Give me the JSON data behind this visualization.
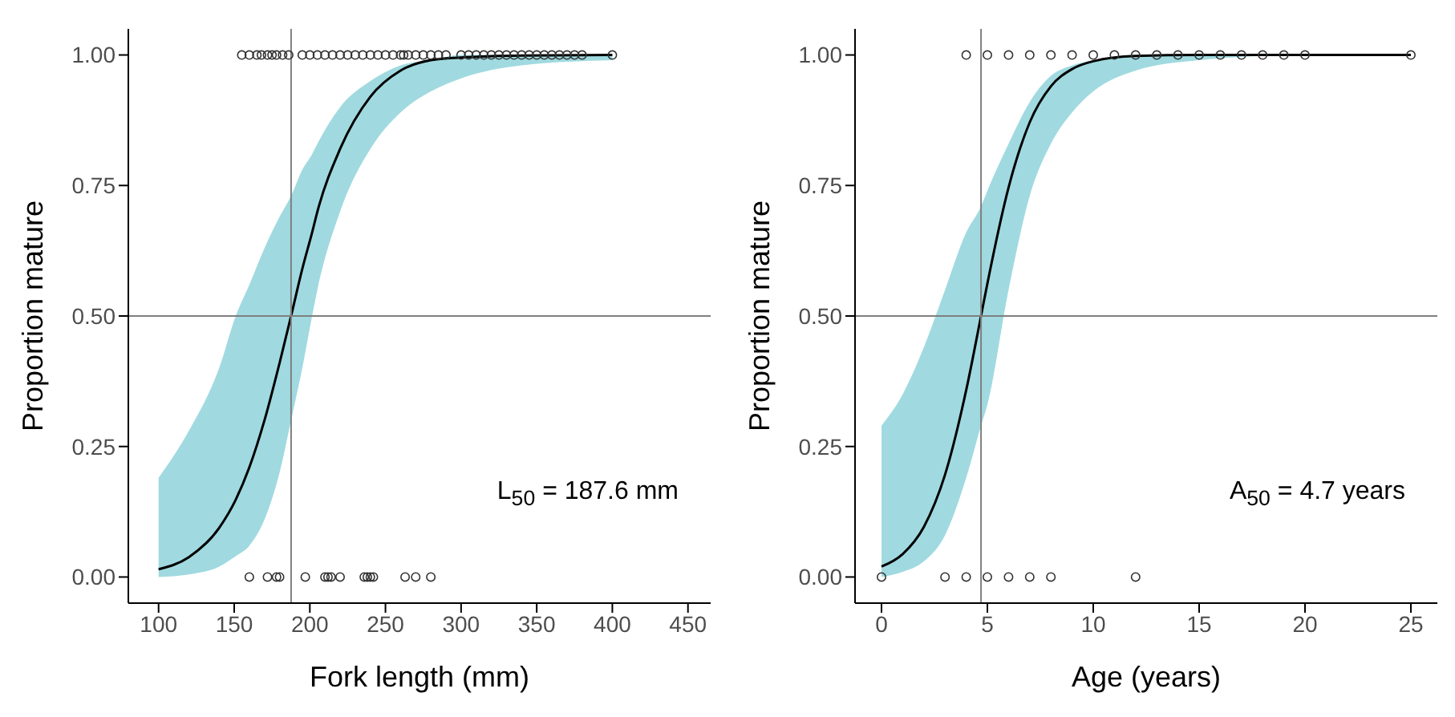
{
  "chart_data": [
    {
      "type": "line",
      "xlabel": "Fork length (mm)",
      "ylabel": "Proportion mature",
      "xlim": [
        80,
        465
      ],
      "xticks": [
        100,
        150,
        200,
        250,
        300,
        350,
        400,
        450
      ],
      "ylim": [
        -0.05,
        1.05
      ],
      "yticks": [
        {
          "value": 0,
          "label": "0.00"
        },
        {
          "value": 0.25,
          "label": "0.25"
        },
        {
          "value": 0.5,
          "label": "0.50"
        },
        {
          "value": 0.75,
          "label": "0.75"
        },
        {
          "value": 1,
          "label": "1.00"
        }
      ],
      "grid": false,
      "legend": false,
      "ref_lines": [
        {
          "axis": "x",
          "value": 187.6,
          "color": "#7f7f7f"
        },
        {
          "axis": "y",
          "value": 0.5,
          "color": "#7f7f7f"
        }
      ],
      "annotations": [
        "L$_{50}$ = 187.6 mm"
      ],
      "series": [
        {
          "color": "#000000",
          "x": [
            100,
            120,
            140,
            151,
            160,
            170,
            180,
            187.6,
            195,
            201.5,
            205,
            220,
            240,
            260,
            280,
            300,
            340,
            400
          ],
          "values": [
            0.015,
            0.038,
            0.094,
            0.148,
            0.21,
            0.3,
            0.41,
            0.5,
            0.59,
            0.66,
            0.7,
            0.82,
            0.92,
            0.97,
            0.99,
            0.995,
            0.999,
            1.0
          ],
          "lower": [
            0.0,
            0.005,
            0.02,
            0.04,
            0.06,
            0.11,
            0.2,
            0.3,
            0.4,
            0.5,
            0.55,
            0.7,
            0.82,
            0.89,
            0.93,
            0.955,
            0.98,
            0.99
          ],
          "upper": [
            0.19,
            0.28,
            0.4,
            0.5,
            0.56,
            0.63,
            0.69,
            0.73,
            0.78,
            0.81,
            0.83,
            0.9,
            0.95,
            0.98,
            0.99,
            1.0,
            1.0,
            1.0
          ]
        },
        {
          "type": "scatter",
          "color": "#333333",
          "marker": "circle",
          "x": [
            160,
            172,
            178,
            180,
            197,
            210,
            212,
            214,
            220,
            236,
            238,
            240,
            242,
            263,
            270,
            280,
            155,
            160,
            165,
            168,
            172,
            175,
            178,
            182,
            186,
            195,
            200,
            205,
            210,
            215,
            220,
            225,
            230,
            235,
            240,
            245,
            250,
            255,
            260,
            262,
            265,
            270,
            275,
            280,
            285,
            290,
            300,
            305,
            310,
            315,
            320,
            325,
            330,
            335,
            340,
            345,
            350,
            355,
            360,
            365,
            370,
            375,
            380,
            400
          ],
          "values": [
            0,
            0,
            0,
            0,
            0,
            0,
            0,
            0,
            0,
            0,
            0,
            0,
            0,
            0,
            0,
            0,
            1,
            1,
            1,
            1,
            1,
            1,
            1,
            1,
            1,
            1,
            1,
            1,
            1,
            1,
            1,
            1,
            1,
            1,
            1,
            1,
            1,
            1,
            1,
            1,
            1,
            1,
            1,
            1,
            1,
            1,
            1,
            1,
            1,
            1,
            1,
            1,
            1,
            1,
            1,
            1,
            1,
            1,
            1,
            1,
            1,
            1,
            1,
            1
          ]
        }
      ]
    },
    {
      "type": "line",
      "xlabel": "Age (years)",
      "ylabel": "Proportion mature",
      "xlim": [
        -1.25,
        26.25
      ],
      "xticks": [
        0,
        5,
        10,
        15,
        20,
        25
      ],
      "ylim": [
        -0.05,
        1.05
      ],
      "yticks": [
        {
          "value": 0,
          "label": "0.00"
        },
        {
          "value": 0.25,
          "label": "0.25"
        },
        {
          "value": 0.5,
          "label": "0.50"
        },
        {
          "value": 0.75,
          "label": "0.75"
        },
        {
          "value": 1,
          "label": "1.00"
        }
      ],
      "grid": false,
      "legend": false,
      "ref_lines": [
        {
          "axis": "x",
          "value": 4.7,
          "color": "#7f7f7f"
        },
        {
          "axis": "y",
          "value": 0.5,
          "color": "#7f7f7f"
        }
      ],
      "annotations": [
        "A$_{50}$ = 4.7 years"
      ],
      "series": [
        {
          "color": "#000000",
          "x": [
            0,
            1,
            2,
            3,
            4,
            4.7,
            5,
            6,
            7,
            8,
            9,
            10,
            12,
            15,
            20,
            25
          ],
          "values": [
            0.02,
            0.044,
            0.096,
            0.196,
            0.358,
            0.5,
            0.562,
            0.746,
            0.871,
            0.94,
            0.973,
            0.988,
            0.998,
            1.0,
            1.0,
            1.0
          ],
          "lower": [
            0.0,
            0.01,
            0.03,
            0.08,
            0.19,
            0.29,
            0.33,
            0.55,
            0.73,
            0.83,
            0.89,
            0.93,
            0.97,
            0.99,
            1.0,
            1.0
          ],
          "upper": [
            0.29,
            0.35,
            0.44,
            0.55,
            0.66,
            0.71,
            0.74,
            0.83,
            0.91,
            0.96,
            0.98,
            0.99,
            1.0,
            1.0,
            1.0,
            1.0
          ]
        },
        {
          "type": "scatter",
          "color": "#333333",
          "marker": "circle",
          "x": [
            0,
            3,
            4,
            5,
            6,
            7,
            8,
            12,
            4,
            5,
            6,
            7,
            8,
            9,
            10,
            11,
            12,
            13,
            14,
            15,
            16,
            17,
            18,
            19,
            20,
            25
          ],
          "values": [
            0,
            0,
            0,
            0,
            0,
            0,
            0,
            0,
            1,
            1,
            1,
            1,
            1,
            1,
            1,
            1,
            1,
            1,
            1,
            1,
            1,
            1,
            1,
            1,
            1,
            1
          ]
        }
      ]
    }
  ]
}
